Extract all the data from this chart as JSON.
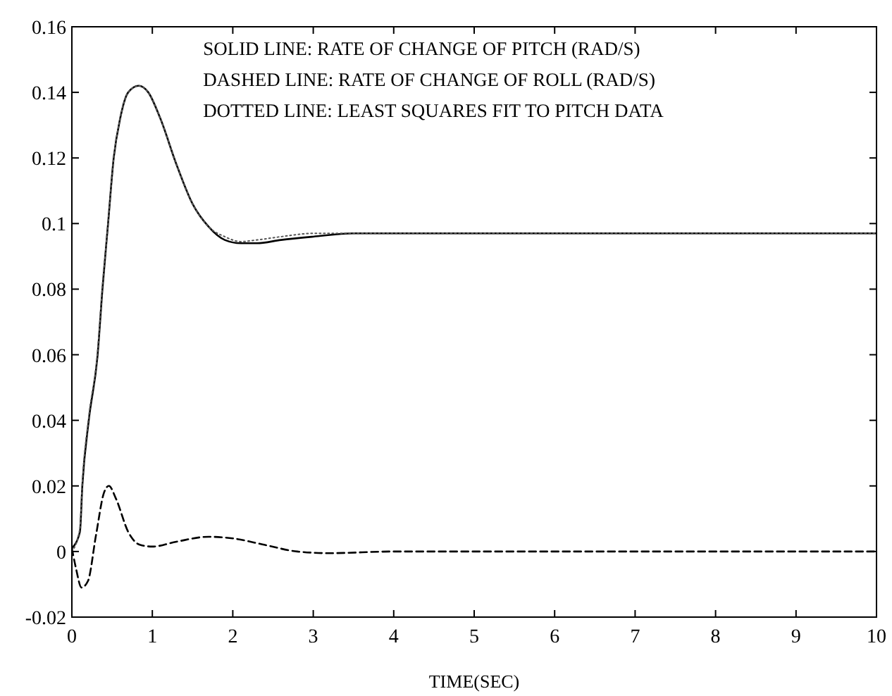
{
  "chart_data": {
    "type": "line",
    "xlabel": "TIME(SEC)",
    "xlim": [
      0,
      10
    ],
    "xticks": [
      0,
      1,
      2,
      3,
      4,
      5,
      6,
      7,
      8,
      9,
      10
    ],
    "ylim": [
      -0.02,
      0.16
    ],
    "yticks": [
      -0.02,
      0,
      0.02,
      0.04,
      0.06,
      0.08,
      0.1,
      0.12,
      0.14,
      0.16
    ],
    "grid": false,
    "annotations": [
      "SOLID LINE: RATE OF CHANGE OF PITCH (RAD/S)",
      "DASHED LINE: RATE OF CHANGE OF ROLL (RAD/S)",
      "DOTTED LINE: LEAST SQUARES FIT TO PITCH DATA"
    ],
    "series": [
      {
        "color": "#000000",
        "line_style": "solid",
        "x": [
          0,
          0.1,
          0.13,
          0.21,
          0.32,
          0.38,
          0.45,
          0.52,
          0.6,
          0.7,
          0.83,
          0.95,
          1.1,
          1.3,
          1.5,
          1.7,
          1.9,
          2.1,
          2.3,
          2.6,
          3,
          3.5,
          4,
          5,
          6,
          7,
          8,
          9,
          10
        ],
        "values": [
          0.001,
          0.006,
          0.02,
          0.04,
          0.06,
          0.08,
          0.1,
          0.12,
          0.132,
          0.14,
          0.142,
          0.14,
          0.132,
          0.118,
          0.106,
          0.099,
          0.095,
          0.094,
          0.094,
          0.095,
          0.096,
          0.097,
          0.097,
          0.097,
          0.097,
          0.097,
          0.097,
          0.097,
          0.097
        ]
      },
      {
        "color": "#000000",
        "line_style": "dashed",
        "x": [
          0,
          0.05,
          0.12,
          0.2,
          0.3,
          0.4,
          0.46,
          0.55,
          0.7,
          0.85,
          1,
          1.3,
          1.7,
          2,
          2.4,
          2.8,
          3.2,
          4,
          5,
          6,
          7,
          8,
          9,
          10
        ],
        "values": [
          0.001,
          -0.005,
          -0.011,
          -0.009,
          0.005,
          0.018,
          0.02,
          0.016,
          0.006,
          0.002,
          0.0015,
          0.003,
          0.0045,
          0.004,
          0.002,
          0,
          -0.0005,
          0,
          0,
          0,
          0,
          0,
          0,
          0
        ]
      },
      {
        "color": "#555555",
        "line_style": "dotted",
        "x": [
          0,
          0.1,
          0.13,
          0.21,
          0.32,
          0.38,
          0.45,
          0.52,
          0.6,
          0.7,
          0.83,
          0.95,
          1.1,
          1.3,
          1.5,
          1.7,
          1.9,
          2.1,
          2.3,
          2.6,
          3,
          3.5,
          4,
          5,
          6,
          7,
          8,
          9,
          10
        ],
        "values": [
          0,
          0.007,
          0.021,
          0.041,
          0.061,
          0.081,
          0.1,
          0.12,
          0.132,
          0.14,
          0.142,
          0.14,
          0.132,
          0.118,
          0.106,
          0.099,
          0.096,
          0.0945,
          0.095,
          0.096,
          0.097,
          0.097,
          0.097,
          0.097,
          0.097,
          0.097,
          0.097,
          0.097,
          0.097
        ]
      }
    ]
  }
}
